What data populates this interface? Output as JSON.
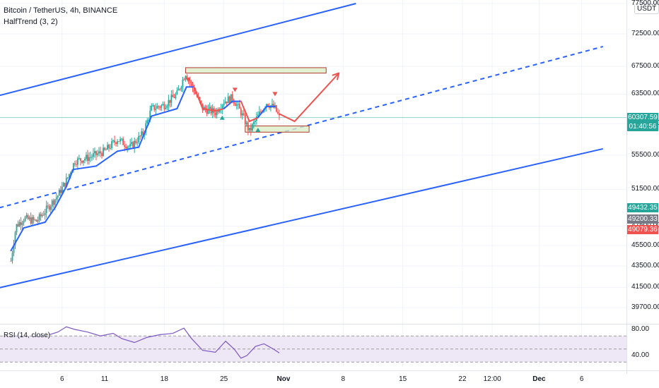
{
  "header": {
    "title": "Bitcoin / TetherUS, 4h, BINANCE",
    "indicator": "HalfTrend (3, 2)",
    "quote_currency": "USDT"
  },
  "rsi_panel": {
    "label": "RSI (14, close)",
    "ticks": [
      {
        "label": "80.00",
        "value": 80
      },
      {
        "label": "40.00",
        "value": 40
      }
    ],
    "levels": [
      70,
      50,
      30
    ]
  },
  "price_tags": [
    {
      "id": "last",
      "line1": "60307.59",
      "line2": "01:40:56",
      "value": 60307.59,
      "color": "#26a69a"
    },
    {
      "id": "green",
      "line1": "49432.35",
      "value": 49432.35,
      "color": "#26a69a"
    },
    {
      "id": "gray",
      "line1": "49200.33",
      "value": 49200.33,
      "color": "#787b86"
    },
    {
      "id": "red",
      "line1": "49079.36",
      "value": 49079.36,
      "color": "#ef5350"
    }
  ],
  "colors": {
    "up": "#26a69a",
    "down": "#ef5350",
    "channel": "#2962ff",
    "halftrend_up": "#2962ff",
    "halftrend_down": "#ef5350",
    "zone_fill": "#dcedc8",
    "zone_border": "#b03a2e",
    "arrow": "#ef5350",
    "rsi_line": "#7e57c2",
    "rsi_band": "#ede7f6"
  },
  "chart_data": {
    "type": "candlestick",
    "symbol": "BTCUSDT",
    "timeframe": "4h",
    "y_axis": {
      "ticks": [
        {
          "label": "77500.00",
          "value": 77500
        },
        {
          "label": "72500.00",
          "value": 72500
        },
        {
          "label": "67500.00",
          "value": 67500
        },
        {
          "label": "63500.00",
          "value": 63500
        },
        {
          "label": "59500.00",
          "value": 59500
        },
        {
          "label": "55500.00",
          "value": 55500
        },
        {
          "label": "51500.00",
          "value": 51500
        },
        {
          "label": "47500.00",
          "value": 47500
        },
        {
          "label": "45500.00",
          "value": 45500
        },
        {
          "label": "43500.00",
          "value": 43500
        },
        {
          "label": "41500.00",
          "value": 41500
        },
        {
          "label": "39700.00",
          "value": 39700
        }
      ],
      "scale": "log"
    },
    "x_axis": {
      "ticks": [
        {
          "label": "6",
          "day": 6,
          "bold": false
        },
        {
          "label": "11",
          "day": 11,
          "bold": false
        },
        {
          "label": "18",
          "day": 18,
          "bold": false
        },
        {
          "label": "25",
          "day": 25,
          "bold": false
        },
        {
          "label": "Nov",
          "day": 32,
          "bold": true
        },
        {
          "label": "8",
          "day": 39,
          "bold": false
        },
        {
          "label": "15",
          "day": 46,
          "bold": false
        },
        {
          "label": "22",
          "day": 53,
          "bold": false
        },
        {
          "label": "12:00",
          "day": 56.5,
          "bold": false
        },
        {
          "label": "Dec",
          "day": 62,
          "bold": true
        },
        {
          "label": "6",
          "day": 67,
          "bold": false
        }
      ]
    },
    "price_path": [
      {
        "day": 0.0,
        "price": 44000
      },
      {
        "day": 0.6,
        "price": 47500
      },
      {
        "day": 1.5,
        "price": 48300
      },
      {
        "day": 3.0,
        "price": 48000
      },
      {
        "day": 4.2,
        "price": 49300
      },
      {
        "day": 5.5,
        "price": 50800
      },
      {
        "day": 6.5,
        "price": 52500
      },
      {
        "day": 7.5,
        "price": 54800
      },
      {
        "day": 9.0,
        "price": 55200
      },
      {
        "day": 11.0,
        "price": 56000
      },
      {
        "day": 12.5,
        "price": 57500
      },
      {
        "day": 14.0,
        "price": 56500
      },
      {
        "day": 15.5,
        "price": 58200
      },
      {
        "day": 16.5,
        "price": 61500
      },
      {
        "day": 18.0,
        "price": 62000
      },
      {
        "day": 19.5,
        "price": 63500
      },
      {
        "day": 20.5,
        "price": 66500
      },
      {
        "day": 21.5,
        "price": 64000
      },
      {
        "day": 22.5,
        "price": 61500
      },
      {
        "day": 24.0,
        "price": 61000
      },
      {
        "day": 25.0,
        "price": 62500
      },
      {
        "day": 26.0,
        "price": 63000
      },
      {
        "day": 27.0,
        "price": 61000
      },
      {
        "day": 28.0,
        "price": 58500
      },
      {
        "day": 29.0,
        "price": 60500
      },
      {
        "day": 30.0,
        "price": 62300
      },
      {
        "day": 31.0,
        "price": 61500
      },
      {
        "day": 31.5,
        "price": 60300
      }
    ],
    "halftrend": [
      {
        "day": 0.0,
        "price": 45000,
        "trend": "up"
      },
      {
        "day": 1.5,
        "price": 47300,
        "trend": "up"
      },
      {
        "day": 4.0,
        "price": 47900,
        "trend": "up"
      },
      {
        "day": 5.2,
        "price": 49500,
        "trend": "up"
      },
      {
        "day": 6.5,
        "price": 51800,
        "trend": "up"
      },
      {
        "day": 7.3,
        "price": 53800,
        "trend": "up"
      },
      {
        "day": 10.0,
        "price": 54200,
        "trend": "up"
      },
      {
        "day": 12.5,
        "price": 56000,
        "trend": "up"
      },
      {
        "day": 15.0,
        "price": 56500,
        "trend": "up"
      },
      {
        "day": 16.5,
        "price": 60500,
        "trend": "up"
      },
      {
        "day": 19.5,
        "price": 61500,
        "trend": "up"
      },
      {
        "day": 20.6,
        "price": 64500,
        "trend": "up"
      },
      {
        "day": 21.5,
        "price": 64500,
        "trend": "down"
      },
      {
        "day": 22.5,
        "price": 61500,
        "trend": "down"
      },
      {
        "day": 24.0,
        "price": 61200,
        "trend": "down"
      },
      {
        "day": 25.0,
        "price": 61500,
        "trend": "up"
      },
      {
        "day": 26.0,
        "price": 62500,
        "trend": "up"
      },
      {
        "day": 27.0,
        "price": 62500,
        "trend": "down"
      },
      {
        "day": 28.0,
        "price": 59800,
        "trend": "down"
      },
      {
        "day": 29.0,
        "price": 60300,
        "trend": "up"
      },
      {
        "day": 30.0,
        "price": 61800,
        "trend": "up"
      },
      {
        "day": 31.0,
        "price": 61800,
        "trend": "down"
      }
    ],
    "channel_lines": [
      {
        "name": "upper",
        "style": "solid",
        "from": {
          "day": -4,
          "price": 62500
        },
        "to": {
          "day": 40.5,
          "price": 77500
        }
      },
      {
        "name": "middle",
        "style": "dashed",
        "from": {
          "day": -4,
          "price": 48800
        },
        "to": {
          "day": 69.5,
          "price": 70500
        }
      },
      {
        "name": "lower",
        "style": "solid",
        "from": {
          "day": -4,
          "price": 41000
        },
        "to": {
          "day": 69.5,
          "price": 56300
        }
      }
    ],
    "zones": [
      {
        "name": "resistance-zone",
        "day_start": 20.5,
        "day_end": 37.0,
        "price_low": 66500,
        "price_high": 67300
      },
      {
        "name": "support-zone",
        "day_start": 27.5,
        "day_end": 35.0,
        "price_low": 58400,
        "price_high": 59200
      }
    ],
    "projection_path": [
      {
        "day": 31.5,
        "price": 60800
      },
      {
        "day": 33.3,
        "price": 59800
      },
      {
        "day": 38.5,
        "price": 66500
      }
    ],
    "signals": [
      {
        "day": 20.8,
        "price": 65500,
        "type": "sell"
      },
      {
        "day": 26.3,
        "price": 64100,
        "type": "sell"
      },
      {
        "day": 31.0,
        "price": 63500,
        "type": "sell"
      },
      {
        "day": 24.8,
        "price": 60300,
        "type": "buy"
      },
      {
        "day": 29.0,
        "price": 58700,
        "type": "buy"
      }
    ],
    "last_price_line": 60307.59,
    "rsi": {
      "range": [
        0,
        100
      ],
      "values": [
        {
          "day": 4.5,
          "value": 72
        },
        {
          "day": 5.5,
          "value": 76
        },
        {
          "day": 6.5,
          "value": 84
        },
        {
          "day": 7.5,
          "value": 80
        },
        {
          "day": 9.0,
          "value": 76
        },
        {
          "day": 10.5,
          "value": 70
        },
        {
          "day": 12.0,
          "value": 74
        },
        {
          "day": 13.0,
          "value": 66
        },
        {
          "day": 14.5,
          "value": 60
        },
        {
          "day": 16.0,
          "value": 68
        },
        {
          "day": 17.5,
          "value": 72
        },
        {
          "day": 19.0,
          "value": 74
        },
        {
          "day": 20.3,
          "value": 82
        },
        {
          "day": 21.2,
          "value": 66
        },
        {
          "day": 22.5,
          "value": 48
        },
        {
          "day": 24.0,
          "value": 45
        },
        {
          "day": 25.2,
          "value": 62
        },
        {
          "day": 26.2,
          "value": 50
        },
        {
          "day": 27.0,
          "value": 36
        },
        {
          "day": 27.7,
          "value": 40
        },
        {
          "day": 28.7,
          "value": 54
        },
        {
          "day": 29.7,
          "value": 58
        },
        {
          "day": 30.8,
          "value": 50
        },
        {
          "day": 31.5,
          "value": 44
        }
      ]
    }
  }
}
